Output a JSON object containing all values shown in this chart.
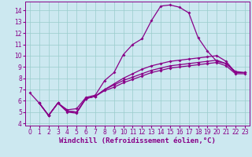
{
  "xlabel": "Windchill (Refroidissement éolien,°C)",
  "bg_color": "#cce8f0",
  "line_color": "#880088",
  "grid_color": "#99cccc",
  "xlim": [
    -0.5,
    23.5
  ],
  "ylim": [
    3.8,
    14.8
  ],
  "xticks": [
    0,
    1,
    2,
    3,
    4,
    5,
    6,
    7,
    8,
    9,
    10,
    11,
    12,
    13,
    14,
    15,
    16,
    17,
    18,
    19,
    20,
    21,
    22,
    23
  ],
  "yticks": [
    4,
    5,
    6,
    7,
    8,
    9,
    10,
    11,
    12,
    13,
    14
  ],
  "series": [
    {
      "x": [
        0,
        1,
        2,
        3,
        4,
        5,
        6,
        7,
        8,
        9,
        10,
        11,
        12,
        13,
        14,
        15,
        16,
        17,
        18,
        19,
        20,
        21,
        22
      ],
      "y": [
        6.7,
        5.8,
        4.7,
        5.8,
        5.2,
        5.3,
        6.3,
        6.5,
        7.8,
        8.5,
        10.1,
        11.0,
        11.5,
        13.1,
        14.4,
        14.5,
        14.3,
        13.8,
        11.6,
        10.4,
        9.5,
        9.3,
        8.5
      ]
    },
    {
      "x": [
        1,
        2,
        3,
        4,
        5,
        6,
        7,
        8,
        9,
        10,
        11,
        12,
        13,
        14,
        15,
        16,
        17,
        18,
        19,
        20,
        21,
        22,
        23
      ],
      "y": [
        5.8,
        4.7,
        5.8,
        5.1,
        5.0,
        6.2,
        6.4,
        7.0,
        7.5,
        8.0,
        8.4,
        8.8,
        9.1,
        9.3,
        9.5,
        9.6,
        9.7,
        9.8,
        9.9,
        10.0,
        9.5,
        8.5,
        8.5
      ]
    },
    {
      "x": [
        1,
        2,
        3,
        4,
        5,
        6,
        7,
        8,
        9,
        10,
        11,
        12,
        13,
        14,
        15,
        16,
        17,
        18,
        19,
        20,
        21,
        22,
        23
      ],
      "y": [
        5.8,
        4.7,
        5.8,
        5.1,
        5.0,
        6.2,
        6.4,
        7.0,
        7.4,
        7.8,
        8.1,
        8.4,
        8.7,
        8.9,
        9.1,
        9.2,
        9.3,
        9.4,
        9.5,
        9.6,
        9.3,
        8.6,
        8.5
      ]
    },
    {
      "x": [
        1,
        2,
        3,
        4,
        5,
        6,
        7,
        8,
        9,
        10,
        11,
        12,
        13,
        14,
        15,
        16,
        17,
        18,
        19,
        20,
        21,
        22,
        23
      ],
      "y": [
        5.8,
        4.7,
        5.8,
        5.0,
        4.9,
        6.2,
        6.4,
        6.9,
        7.2,
        7.6,
        7.9,
        8.2,
        8.5,
        8.7,
        8.9,
        9.0,
        9.1,
        9.2,
        9.3,
        9.4,
        9.1,
        8.4,
        8.4
      ]
    }
  ],
  "marker": "D",
  "markersize": 2.0,
  "linewidth": 0.9,
  "tick_fontsize": 5.5,
  "xlabel_fontsize": 6.5
}
